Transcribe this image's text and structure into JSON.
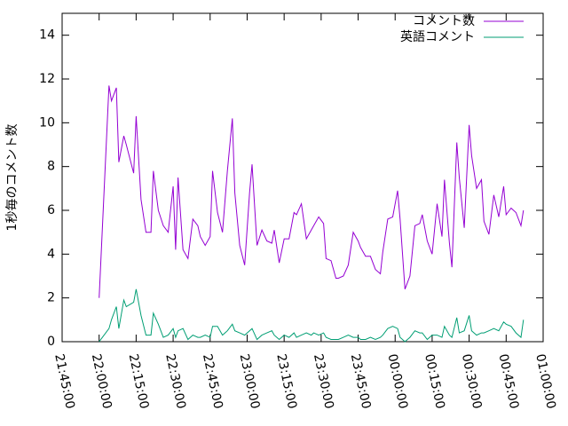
{
  "chart_data": {
    "type": "line",
    "ylabel": "1秒毎のコメント数",
    "x": [
      "22:00:00",
      "22:04:00",
      "22:05:00",
      "22:07:00",
      "22:08:00",
      "22:10:00",
      "22:11:00",
      "22:14:00",
      "22:15:00",
      "22:17:00",
      "22:19:00",
      "22:21:00",
      "22:22:00",
      "22:24:00",
      "22:26:00",
      "22:28:00",
      "22:30:00",
      "22:31:00",
      "22:32:00",
      "22:34:00",
      "22:36:00",
      "22:38:00",
      "22:40:00",
      "22:41:00",
      "22:43:00",
      "22:45:00",
      "22:46:00",
      "22:48:00",
      "22:50:00",
      "22:52:00",
      "22:54:00",
      "22:55:00",
      "22:57:00",
      "22:59:00",
      "23:01:00",
      "23:02:00",
      "23:04:00",
      "23:06:00",
      "23:08:00",
      "23:10:00",
      "23:11:00",
      "23:13:00",
      "23:15:00",
      "23:17:00",
      "23:19:00",
      "23:20:00",
      "23:22:00",
      "23:24:00",
      "23:26:00",
      "23:27:00",
      "23:29:00",
      "23:31:00",
      "23:32:00",
      "23:34:00",
      "23:36:00",
      "23:37:00",
      "23:39:00",
      "23:41:00",
      "23:43:00",
      "23:45:00",
      "23:46:00",
      "23:48:00",
      "23:50:00",
      "23:52:00",
      "23:54:00",
      "23:55:00",
      "23:57:00",
      "23:59:00",
      "00:01:00",
      "00:02:00",
      "00:04:00",
      "00:06:00",
      "00:08:00",
      "00:10:00",
      "00:11:00",
      "00:13:00",
      "00:15:00",
      "00:17:00",
      "00:19:00",
      "00:20:00",
      "00:22:00",
      "00:23:00",
      "00:25:00",
      "00:26:00",
      "00:28:00",
      "00:30:00",
      "00:31:00",
      "00:33:00",
      "00:35:00",
      "00:36:00",
      "00:38:00",
      "00:40:00",
      "00:42:00",
      "00:44:00",
      "00:45:00",
      "00:47:00",
      "00:49:00",
      "00:51:00",
      "00:52:00"
    ],
    "series": [
      {
        "name": "コメント数",
        "color": "#9400d3",
        "values": [
          2.0,
          11.7,
          11.0,
          11.6,
          8.2,
          9.4,
          9.0,
          7.7,
          10.3,
          6.5,
          5.0,
          5.0,
          7.8,
          6.0,
          5.3,
          5.0,
          7.1,
          4.2,
          7.5,
          4.2,
          3.8,
          5.6,
          5.3,
          4.8,
          4.4,
          4.8,
          7.8,
          5.9,
          5.0,
          7.8,
          10.2,
          6.8,
          4.4,
          3.5,
          6.8,
          8.1,
          4.4,
          5.1,
          4.6,
          4.5,
          5.1,
          3.6,
          4.7,
          4.7,
          5.9,
          5.8,
          6.3,
          4.7,
          5.1,
          5.3,
          5.7,
          5.4,
          3.8,
          3.7,
          2.9,
          2.9,
          3.0,
          3.5,
          5.0,
          4.6,
          4.3,
          3.9,
          3.9,
          3.3,
          3.1,
          4.1,
          5.6,
          5.7,
          6.9,
          5.6,
          2.4,
          3.0,
          5.3,
          5.4,
          5.8,
          4.6,
          4.0,
          6.3,
          4.8,
          7.4,
          4.5,
          3.4,
          9.1,
          7.5,
          5.2,
          9.9,
          8.5,
          7.0,
          7.4,
          5.5,
          4.9,
          6.7,
          5.7,
          7.1,
          5.8,
          6.1,
          5.9,
          5.3,
          6.0
        ]
      },
      {
        "name": "英語コメント",
        "color": "#009e73",
        "values": [
          0.0,
          0.6,
          1.0,
          1.6,
          0.6,
          1.9,
          1.6,
          1.8,
          2.4,
          1.2,
          0.3,
          0.3,
          1.3,
          0.8,
          0.2,
          0.3,
          0.6,
          0.2,
          0.5,
          0.6,
          0.1,
          0.3,
          0.2,
          0.2,
          0.3,
          0.2,
          0.7,
          0.7,
          0.3,
          0.5,
          0.8,
          0.5,
          0.4,
          0.3,
          0.5,
          0.6,
          0.1,
          0.3,
          0.4,
          0.5,
          0.3,
          0.1,
          0.3,
          0.2,
          0.4,
          0.2,
          0.3,
          0.4,
          0.3,
          0.4,
          0.3,
          0.4,
          0.2,
          0.1,
          0.1,
          0.1,
          0.2,
          0.3,
          0.2,
          0.2,
          0.1,
          0.1,
          0.2,
          0.1,
          0.2,
          0.3,
          0.6,
          0.7,
          0.6,
          0.2,
          0.0,
          0.2,
          0.5,
          0.4,
          0.4,
          0.1,
          0.3,
          0.3,
          0.2,
          0.7,
          0.3,
          0.2,
          1.1,
          0.4,
          0.5,
          1.2,
          0.5,
          0.3,
          0.4,
          0.4,
          0.5,
          0.6,
          0.5,
          0.9,
          0.8,
          0.7,
          0.4,
          0.2,
          1.0
        ]
      }
    ],
    "xlim": [
      "21:45:00",
      "01:00:00"
    ],
    "xticks": [
      "21:45:00",
      "22:00:00",
      "22:15:00",
      "22:30:00",
      "22:45:00",
      "23:00:00",
      "23:15:00",
      "23:30:00",
      "23:45:00",
      "00:00:00",
      "00:15:00",
      "00:30:00",
      "00:45:00",
      "01:00:00"
    ],
    "ylim": [
      0,
      15
    ],
    "yticks": [
      0,
      2,
      4,
      6,
      8,
      10,
      12,
      14
    ],
    "legend": "upper right"
  }
}
